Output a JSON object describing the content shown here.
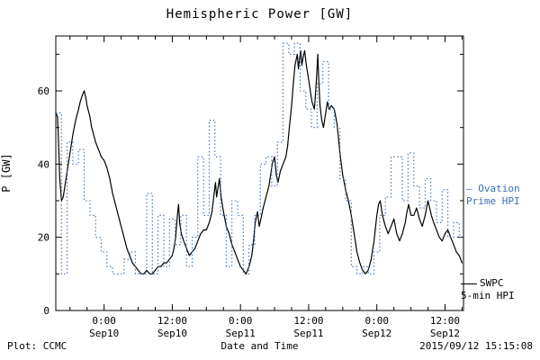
{
  "title": "Hemispheric Power [GW]",
  "footer": {
    "source": "Plot: CCMC",
    "timestamp": "2015/09/12 15:15:08"
  },
  "legend": {
    "ovation_line1": "– Ovation",
    "ovation_line2": "Prime HPI",
    "swpc_line1": "SWPC",
    "swpc_line2": "5-min HPI"
  },
  "colors": {
    "swpc": "#000000",
    "ovation": "#3a6fb5",
    "axis": "#000000",
    "background": "#ffffff"
  },
  "chart_data": {
    "type": "line",
    "title": "Hemispheric Power [GW]",
    "xlabel": "Date and Time",
    "ylabel": "P [GW]",
    "ylim": [
      0,
      75
    ],
    "xlim_hours": [
      -8.5,
      63.25
    ],
    "x_reference": "hours relative to 2015-09-10 00:00 UT",
    "grid": false,
    "legend_position": "right-outside",
    "yticks": [
      0,
      20,
      40,
      60
    ],
    "yticks_minor": [
      10,
      30,
      50,
      70
    ],
    "xticks": [
      {
        "h": 0,
        "time": "0:00",
        "date": "Sep10"
      },
      {
        "h": 12,
        "time": "12:00",
        "date": "Sep10"
      },
      {
        "h": 24,
        "time": "0:00",
        "date": "Sep11"
      },
      {
        "h": 36,
        "time": "12:00",
        "date": "Sep11"
      },
      {
        "h": 48,
        "time": "0:00",
        "date": "Sep12"
      },
      {
        "h": 60,
        "time": "12:00",
        "date": "Sep12"
      }
    ],
    "xtick_minor_step_hours": 3,
    "series": [
      {
        "name": "SWPC 5-min HPI",
        "style": "solid",
        "color": "#000000",
        "points": [
          [
            -8.5,
            54
          ],
          [
            -8.2,
            53
          ],
          [
            -8.0,
            45
          ],
          [
            -7.8,
            36
          ],
          [
            -7.5,
            30
          ],
          [
            -7.2,
            31
          ],
          [
            -7.0,
            33
          ],
          [
            -6.5,
            38
          ],
          [
            -6.0,
            43
          ],
          [
            -5.5,
            48
          ],
          [
            -5.0,
            52
          ],
          [
            -4.5,
            55
          ],
          [
            -4.2,
            57
          ],
          [
            -3.8,
            59
          ],
          [
            -3.5,
            60
          ],
          [
            -3.2,
            58
          ],
          [
            -3.0,
            56
          ],
          [
            -2.5,
            53
          ],
          [
            -2.2,
            50
          ],
          [
            -2.0,
            49
          ],
          [
            -1.5,
            46
          ],
          [
            -1.0,
            44
          ],
          [
            -0.5,
            42
          ],
          [
            0.0,
            41
          ],
          [
            0.5,
            39
          ],
          [
            1.0,
            36
          ],
          [
            1.5,
            32
          ],
          [
            2.0,
            29
          ],
          [
            2.5,
            26
          ],
          [
            3.0,
            23
          ],
          [
            3.5,
            20
          ],
          [
            4.0,
            17
          ],
          [
            4.5,
            15
          ],
          [
            5.0,
            13
          ],
          [
            5.5,
            12
          ],
          [
            6.0,
            11
          ],
          [
            6.5,
            10
          ],
          [
            7.0,
            10
          ],
          [
            7.5,
            11
          ],
          [
            8.0,
            10
          ],
          [
            8.5,
            10
          ],
          [
            9.0,
            11
          ],
          [
            9.5,
            12
          ],
          [
            10.0,
            12
          ],
          [
            10.5,
            13
          ],
          [
            11.0,
            13
          ],
          [
            11.5,
            14
          ],
          [
            12.0,
            15
          ],
          [
            12.3,
            17
          ],
          [
            12.6,
            20
          ],
          [
            12.9,
            26
          ],
          [
            13.1,
            29
          ],
          [
            13.3,
            24
          ],
          [
            13.6,
            21
          ],
          [
            14.0,
            19
          ],
          [
            14.5,
            17
          ],
          [
            15.0,
            15
          ],
          [
            15.5,
            16
          ],
          [
            16.0,
            17
          ],
          [
            16.5,
            19
          ],
          [
            17.0,
            21
          ],
          [
            17.5,
            22
          ],
          [
            18.0,
            22
          ],
          [
            18.5,
            24
          ],
          [
            19.0,
            27
          ],
          [
            19.3,
            31
          ],
          [
            19.6,
            35
          ],
          [
            19.8,
            31
          ],
          [
            20.0,
            33
          ],
          [
            20.3,
            36
          ],
          [
            20.6,
            31
          ],
          [
            21.0,
            27
          ],
          [
            21.5,
            23
          ],
          [
            22.0,
            21
          ],
          [
            22.5,
            18
          ],
          [
            23.0,
            16
          ],
          [
            23.5,
            14
          ],
          [
            24.0,
            12
          ],
          [
            24.5,
            11
          ],
          [
            25.0,
            10
          ],
          [
            25.5,
            12
          ],
          [
            26.0,
            15
          ],
          [
            26.3,
            19
          ],
          [
            26.6,
            24
          ],
          [
            27.0,
            27
          ],
          [
            27.3,
            23
          ],
          [
            27.6,
            25
          ],
          [
            28.0,
            28
          ],
          [
            28.5,
            31
          ],
          [
            29.0,
            34
          ],
          [
            29.3,
            37
          ],
          [
            29.6,
            40
          ],
          [
            30.0,
            42
          ],
          [
            30.3,
            37
          ],
          [
            30.6,
            35
          ],
          [
            31.0,
            38
          ],
          [
            31.5,
            40
          ],
          [
            32.0,
            42
          ],
          [
            32.3,
            45
          ],
          [
            32.6,
            50
          ],
          [
            33.0,
            56
          ],
          [
            33.3,
            62
          ],
          [
            33.6,
            67
          ],
          [
            34.0,
            70
          ],
          [
            34.2,
            66
          ],
          [
            34.4,
            69
          ],
          [
            34.6,
            71
          ],
          [
            34.8,
            67
          ],
          [
            35.0,
            69
          ],
          [
            35.3,
            71
          ],
          [
            35.6,
            67
          ],
          [
            36.0,
            63
          ],
          [
            36.3,
            60
          ],
          [
            36.6,
            57
          ],
          [
            37.0,
            55
          ],
          [
            37.2,
            59
          ],
          [
            37.4,
            64
          ],
          [
            37.6,
            70
          ],
          [
            37.8,
            62
          ],
          [
            38.0,
            56
          ],
          [
            38.3,
            52
          ],
          [
            38.6,
            50
          ],
          [
            39.0,
            54
          ],
          [
            39.3,
            57
          ],
          [
            39.6,
            55
          ],
          [
            40.0,
            56
          ],
          [
            40.5,
            55
          ],
          [
            41.0,
            51
          ],
          [
            41.5,
            43
          ],
          [
            42.0,
            37
          ],
          [
            42.5,
            33
          ],
          [
            43.0,
            30
          ],
          [
            43.5,
            26
          ],
          [
            44.0,
            21
          ],
          [
            44.5,
            16
          ],
          [
            45.0,
            13
          ],
          [
            45.5,
            11
          ],
          [
            46.0,
            10
          ],
          [
            46.5,
            11
          ],
          [
            47.0,
            14
          ],
          [
            47.5,
            19
          ],
          [
            48.0,
            26
          ],
          [
            48.3,
            29
          ],
          [
            48.6,
            30
          ],
          [
            49.0,
            26
          ],
          [
            49.5,
            23
          ],
          [
            50.0,
            21
          ],
          [
            50.5,
            23
          ],
          [
            51.0,
            25
          ],
          [
            51.5,
            21
          ],
          [
            52.0,
            19
          ],
          [
            52.5,
            21
          ],
          [
            53.0,
            24
          ],
          [
            53.3,
            27
          ],
          [
            53.6,
            29
          ],
          [
            54.0,
            26
          ],
          [
            54.5,
            26
          ],
          [
            55.0,
            28
          ],
          [
            55.5,
            25
          ],
          [
            56.0,
            23
          ],
          [
            56.5,
            26
          ],
          [
            57.0,
            30
          ],
          [
            57.3,
            28
          ],
          [
            57.6,
            26
          ],
          [
            58.0,
            24
          ],
          [
            58.5,
            22
          ],
          [
            59.0,
            20
          ],
          [
            59.5,
            19
          ],
          [
            60.0,
            21
          ],
          [
            60.5,
            22
          ],
          [
            61.0,
            20
          ],
          [
            61.5,
            18
          ],
          [
            62.0,
            16
          ],
          [
            62.5,
            15
          ],
          [
            63.0,
            13
          ]
        ]
      },
      {
        "name": "Ovation Prime HPI",
        "style": "dotted-step",
        "color": "#3a6fb5",
        "points": [
          [
            -8.5,
            54
          ],
          [
            -7.5,
            10
          ],
          [
            -6.5,
            46
          ],
          [
            -5.5,
            40
          ],
          [
            -4.5,
            44
          ],
          [
            -3.5,
            30
          ],
          [
            -2.5,
            26
          ],
          [
            -1.5,
            20
          ],
          [
            -0.5,
            16
          ],
          [
            0.5,
            12
          ],
          [
            1.5,
            10
          ],
          [
            2.5,
            10
          ],
          [
            3.5,
            14
          ],
          [
            4.5,
            16
          ],
          [
            5.5,
            10
          ],
          [
            6.5,
            10
          ],
          [
            7.5,
            32
          ],
          [
            8.5,
            10
          ],
          [
            9.5,
            26
          ],
          [
            10.5,
            12
          ],
          [
            11.5,
            25
          ],
          [
            12.5,
            18
          ],
          [
            13.5,
            26
          ],
          [
            14.5,
            12
          ],
          [
            15.5,
            20
          ],
          [
            16.5,
            42
          ],
          [
            17.5,
            26
          ],
          [
            18.5,
            52
          ],
          [
            19.5,
            42
          ],
          [
            20.5,
            26
          ],
          [
            21.5,
            12
          ],
          [
            22.5,
            30
          ],
          [
            23.5,
            26
          ],
          [
            24.5,
            10
          ],
          [
            25.5,
            18
          ],
          [
            26.5,
            26
          ],
          [
            27.5,
            40
          ],
          [
            28.5,
            42
          ],
          [
            29.5,
            34
          ],
          [
            30.5,
            46
          ],
          [
            31.5,
            73
          ],
          [
            32.5,
            70
          ],
          [
            33.5,
            73
          ],
          [
            34.5,
            60
          ],
          [
            35.5,
            55
          ],
          [
            36.5,
            50
          ],
          [
            37.5,
            62
          ],
          [
            38.5,
            68
          ],
          [
            39.5,
            55
          ],
          [
            40.5,
            50
          ],
          [
            41.5,
            36
          ],
          [
            42.5,
            30
          ],
          [
            43.5,
            12
          ],
          [
            44.5,
            10
          ],
          [
            45.5,
            12
          ],
          [
            46.5,
            10
          ],
          [
            47.5,
            16
          ],
          [
            48.5,
            26
          ],
          [
            49.5,
            31
          ],
          [
            50.5,
            42
          ],
          [
            51.5,
            42
          ],
          [
            52.5,
            30
          ],
          [
            53.5,
            43
          ],
          [
            54.5,
            34
          ],
          [
            55.5,
            28
          ],
          [
            56.5,
            36
          ],
          [
            57.5,
            30
          ],
          [
            58.5,
            24
          ],
          [
            59.5,
            33
          ],
          [
            60.5,
            20
          ],
          [
            61.5,
            24
          ],
          [
            62.5,
            20
          ]
        ]
      }
    ]
  }
}
